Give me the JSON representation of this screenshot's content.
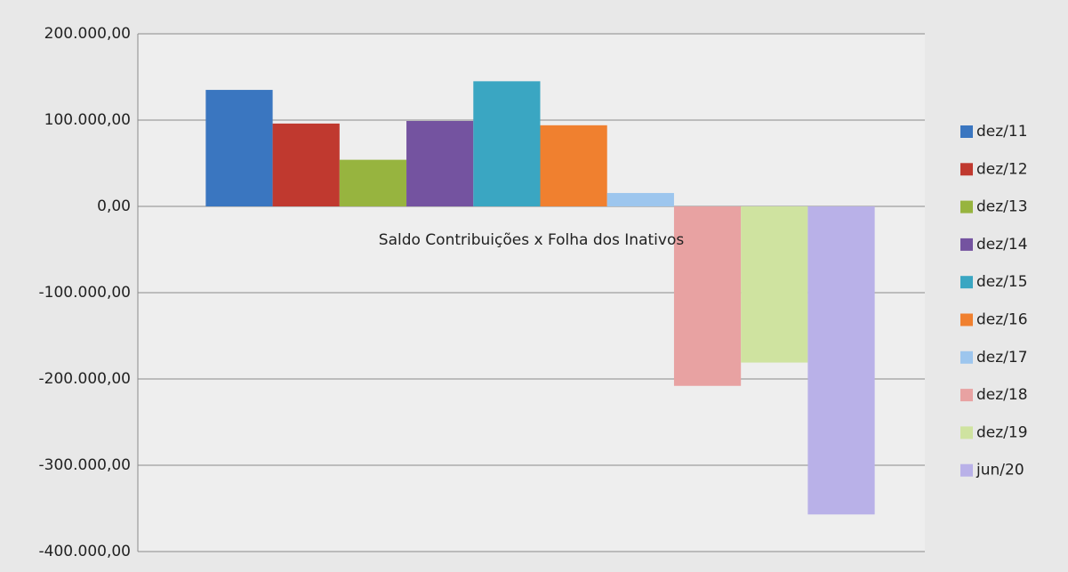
{
  "chart_data": {
    "type": "bar",
    "categories": [
      "Saldo Contribuições x Folha dos Inativos"
    ],
    "series": [
      {
        "name": "dez/11",
        "color": "#3a76c0",
        "values": [
          135000
        ]
      },
      {
        "name": "dez/12",
        "color": "#c0392f",
        "values": [
          96000
        ]
      },
      {
        "name": "dez/13",
        "color": "#97b43f",
        "values": [
          54000
        ]
      },
      {
        "name": "dez/14",
        "color": "#7453a0",
        "values": [
          99000
        ]
      },
      {
        "name": "dez/15",
        "color": "#3aa6c2",
        "values": [
          145000
        ]
      },
      {
        "name": "dez/16",
        "color": "#f0802f",
        "values": [
          94000
        ]
      },
      {
        "name": "dez/17",
        "color": "#9dc6ee",
        "values": [
          15500
        ]
      },
      {
        "name": "dez/18",
        "color": "#e8a2a2",
        "values": [
          -208000
        ]
      },
      {
        "name": "dez/19",
        "color": "#cfe3a0",
        "values": [
          -181000
        ]
      },
      {
        "name": "jun/20",
        "color": "#b9b1e8",
        "values": [
          -357000
        ]
      }
    ],
    "ylim": [
      -400000,
      200000
    ],
    "yticks": [
      {
        "value": -400000,
        "label": "-400.000,00"
      },
      {
        "value": -300000,
        "label": "-300.000,00"
      },
      {
        "value": -200000,
        "label": "-200.000,00"
      },
      {
        "value": -100000,
        "label": "-100.000,00"
      },
      {
        "value": 0,
        "label": "0,00"
      },
      {
        "value": 100000,
        "label": "100.000,00"
      },
      {
        "value": 200000,
        "label": "200.000,00"
      }
    ],
    "grid": true,
    "legend": "right"
  }
}
